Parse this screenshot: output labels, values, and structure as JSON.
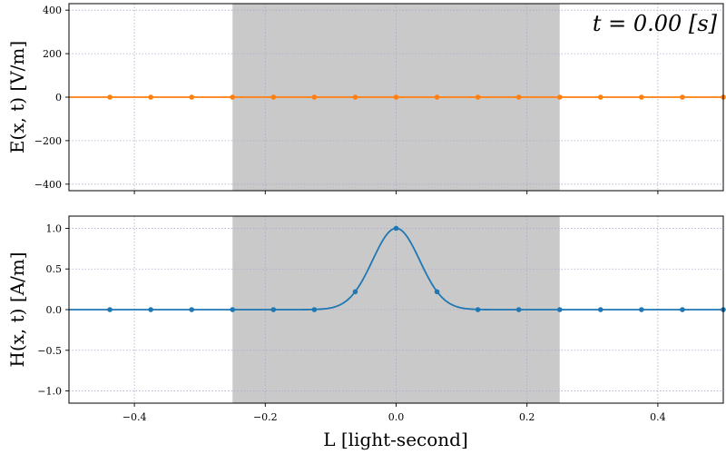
{
  "figure": {
    "time_label": "t = 0.00 [s]",
    "xlabel": "L [light-second]"
  },
  "chart_data": [
    {
      "type": "line",
      "ylabel": "E(x, t) [V/m]",
      "xlim": [
        -0.5,
        0.5
      ],
      "ylim": [
        -430,
        430
      ],
      "yticks": [
        -400,
        -200,
        0,
        200,
        400
      ],
      "ytick_labels": [
        "−400",
        "−200",
        "0",
        "200",
        "400"
      ],
      "xticks": [
        -0.4,
        -0.2,
        0.0,
        0.2,
        0.4
      ],
      "shaded_region": [
        -0.25,
        0.25
      ],
      "grid": true,
      "series": [
        {
          "color": "#ff7f0e",
          "curve": "zero",
          "marker_x": [
            -0.4375,
            -0.375,
            -0.3125,
            -0.25,
            -0.1875,
            -0.125,
            -0.0625,
            0.0,
            0.0625,
            0.125,
            0.1875,
            0.25,
            0.3125,
            0.375,
            0.4375,
            0.5
          ],
          "marker_y": [
            0,
            0,
            0,
            0,
            0,
            0,
            0,
            0,
            0,
            0,
            0,
            0,
            0,
            0,
            0,
            0
          ]
        }
      ]
    },
    {
      "type": "line",
      "ylabel": "H(x, t) [A/m]",
      "xlim": [
        -0.5,
        0.5
      ],
      "ylim": [
        -1.15,
        1.15
      ],
      "yticks": [
        -1.0,
        -0.5,
        0.0,
        0.5,
        1.0
      ],
      "ytick_labels": [
        "−1.0",
        "−0.5",
        "0.0",
        "0.5",
        "1.0"
      ],
      "xticks": [
        -0.4,
        -0.2,
        0.0,
        0.2,
        0.4
      ],
      "xtick_labels": [
        "−0.4",
        "−0.2",
        "0.0",
        "0.2",
        "0.4"
      ],
      "shaded_region": [
        -0.25,
        0.25
      ],
      "grid": true,
      "series": [
        {
          "color": "#1f77b4",
          "curve": "gaussian",
          "gaussian_sigma": 0.036,
          "marker_x": [
            -0.4375,
            -0.375,
            -0.3125,
            -0.25,
            -0.1875,
            -0.125,
            -0.0625,
            0.0,
            0.0625,
            0.125,
            0.1875,
            0.25,
            0.3125,
            0.375,
            0.4375,
            0.5
          ],
          "marker_y": [
            0,
            0,
            0,
            0,
            0,
            0,
            0.22,
            1.0,
            0.22,
            0,
            0,
            0,
            0,
            0,
            0,
            0
          ]
        }
      ]
    }
  ]
}
